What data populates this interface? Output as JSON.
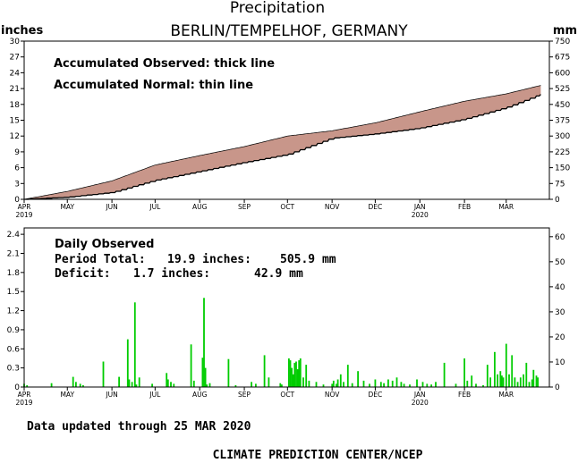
{
  "header": {
    "title": "Precipitation",
    "station": "BERLIN/TEMPELHOF, GERMANY",
    "left_unit": "inches",
    "right_unit": "mm"
  },
  "top_panel": {
    "legend_line_1": "Accumulated Observed: thick line",
    "legend_line_2": "Accumulated Normal: thin line"
  },
  "bottom_panel": {
    "label": "Daily Observed",
    "period_total_label": "Period Total:",
    "period_total_inches": "19.9 inches:",
    "period_total_mm": "505.9 mm",
    "deficit_label": "Deficit:",
    "deficit_inches": "1.7 inches:",
    "deficit_mm": "42.9 mm"
  },
  "footer": {
    "updated": "Data updated through 25 MAR 2020",
    "credit": "CLIMATE PREDICTION CENTER/NCEP"
  },
  "colors": {
    "deficit_fill": "#c8968a",
    "bars": "#00cc00",
    "axis": "#000000"
  },
  "chart_data": [
    {
      "type": "area",
      "title": "Precipitation",
      "subtitle": "BERLIN/TEMPELHOF, GERMANY",
      "xlabel": "",
      "ylabel": "inches",
      "ylabel_right": "mm",
      "x_ticks": [
        "APR 2019",
        "MAY",
        "JUN",
        "JUL",
        "AUG",
        "SEP",
        "OCT",
        "NOV",
        "DEC",
        "JAN 2020",
        "FEB",
        "MAR"
      ],
      "ylim": [
        0,
        30
      ],
      "yticks_left": [
        "0",
        "3",
        "6",
        "9",
        "12",
        "15",
        "18",
        "21",
        "24",
        "27",
        "30"
      ],
      "yticks_right": [
        "0",
        "75",
        "150",
        "225",
        "300",
        "375",
        "450",
        "525",
        "600",
        "675",
        "750"
      ],
      "x": [
        "2019-04-01",
        "2019-05-01",
        "2019-06-01",
        "2019-07-01",
        "2019-08-01",
        "2019-09-01",
        "2019-10-01",
        "2019-11-01",
        "2019-12-01",
        "2020-01-01",
        "2020-02-01",
        "2020-03-01",
        "2020-03-25"
      ],
      "series": [
        {
          "values": [
            0.0,
            1.5,
            3.5,
            6.5,
            8.3,
            10.0,
            12.0,
            13.0,
            14.5,
            16.6,
            18.6,
            20.0,
            21.6
          ]
        },
        {
          "values": [
            0.0,
            0.4,
            1.3,
            3.6,
            5.3,
            7.0,
            8.5,
            11.6,
            12.4,
            13.5,
            15.2,
            17.4,
            19.9
          ]
        }
      ],
      "grid": false
    },
    {
      "type": "bar",
      "xlabel": "",
      "ylabel": "inches",
      "x_ticks": [
        "APR 2019",
        "MAY",
        "JUN",
        "JUL",
        "AUG",
        "SEP",
        "OCT",
        "NOV",
        "DEC",
        "JAN 2020",
        "FEB",
        "MAR"
      ],
      "ylim": [
        0,
        2.5
      ],
      "yticks_left": [
        "0",
        "0.3",
        "0.6",
        "0.9",
        "1.2",
        "1.5",
        "1.8",
        "2.1",
        "2.4"
      ],
      "yticks_right": [
        "0",
        "10",
        "20",
        "30",
        "40",
        "50",
        "60"
      ],
      "x": [
        "2019-04-01",
        "2019-04-03",
        "2019-04-20",
        "2019-05-05",
        "2019-05-07",
        "2019-05-10",
        "2019-05-12",
        "2019-05-26",
        "2019-06-06",
        "2019-06-12",
        "2019-06-13",
        "2019-06-15",
        "2019-06-17",
        "2019-06-18",
        "2019-06-20",
        "2019-06-29",
        "2019-07-09",
        "2019-07-10",
        "2019-07-12",
        "2019-07-14",
        "2019-07-26",
        "2019-07-28",
        "2019-08-03",
        "2019-08-04",
        "2019-08-05",
        "2019-08-06",
        "2019-08-08",
        "2019-08-21",
        "2019-08-26",
        "2019-09-06",
        "2019-09-09",
        "2019-09-15",
        "2019-09-18",
        "2019-09-26",
        "2019-09-27",
        "2019-10-02",
        "2019-10-03",
        "2019-10-04",
        "2019-10-05",
        "2019-10-06",
        "2019-10-07",
        "2019-10-08",
        "2019-10-09",
        "2019-10-10",
        "2019-10-12",
        "2019-10-14",
        "2019-10-16",
        "2019-10-21",
        "2019-10-26",
        "2019-11-01",
        "2019-11-02",
        "2019-11-04",
        "2019-11-05",
        "2019-11-07",
        "2019-11-09",
        "2019-11-12",
        "2019-11-15",
        "2019-11-19",
        "2019-11-23",
        "2019-11-27",
        "2019-12-01",
        "2019-12-05",
        "2019-12-07",
        "2019-12-10",
        "2019-12-13",
        "2019-12-16",
        "2019-12-19",
        "2019-12-21",
        "2019-12-25",
        "2019-12-30",
        "2020-01-03",
        "2020-01-06",
        "2020-01-09",
        "2020-01-12",
        "2020-01-18",
        "2020-01-26",
        "2020-02-01",
        "2020-02-03",
        "2020-02-06",
        "2020-02-09",
        "2020-02-14",
        "2020-02-17",
        "2020-02-19",
        "2020-02-22",
        "2020-02-24",
        "2020-02-26",
        "2020-02-27",
        "2020-02-28",
        "2020-03-01",
        "2020-03-03",
        "2020-03-05",
        "2020-03-07",
        "2020-03-09",
        "2020-03-11",
        "2020-03-13",
        "2020-03-15",
        "2020-03-17",
        "2020-03-19",
        "2020-03-20",
        "2020-03-22",
        "2020-03-23"
      ],
      "values": [
        0.05,
        0.03,
        0.06,
        0.16,
        0.08,
        0.05,
        0.03,
        0.4,
        0.16,
        0.75,
        0.12,
        0.08,
        1.33,
        0.04,
        0.15,
        0.05,
        0.22,
        0.12,
        0.08,
        0.05,
        0.67,
        0.1,
        0.46,
        1.4,
        0.3,
        0.04,
        0.06,
        0.44,
        0.03,
        0.08,
        0.05,
        0.5,
        0.15,
        0.06,
        0.04,
        0.45,
        0.42,
        0.3,
        0.2,
        0.38,
        0.4,
        0.28,
        0.42,
        0.45,
        0.15,
        0.35,
        0.1,
        0.08,
        0.04,
        0.05,
        0.1,
        0.05,
        0.12,
        0.2,
        0.08,
        0.35,
        0.06,
        0.25,
        0.1,
        0.05,
        0.12,
        0.08,
        0.06,
        0.12,
        0.1,
        0.15,
        0.08,
        0.05,
        0.04,
        0.12,
        0.08,
        0.05,
        0.04,
        0.08,
        0.38,
        0.05,
        0.45,
        0.1,
        0.18,
        0.05,
        0.03,
        0.35,
        0.15,
        0.55,
        0.2,
        0.25,
        0.18,
        0.15,
        0.68,
        0.2,
        0.5,
        0.15,
        0.08,
        0.15,
        0.2,
        0.38,
        0.08,
        0.12,
        0.27,
        0.18,
        0.15
      ],
      "grid": false
    }
  ]
}
